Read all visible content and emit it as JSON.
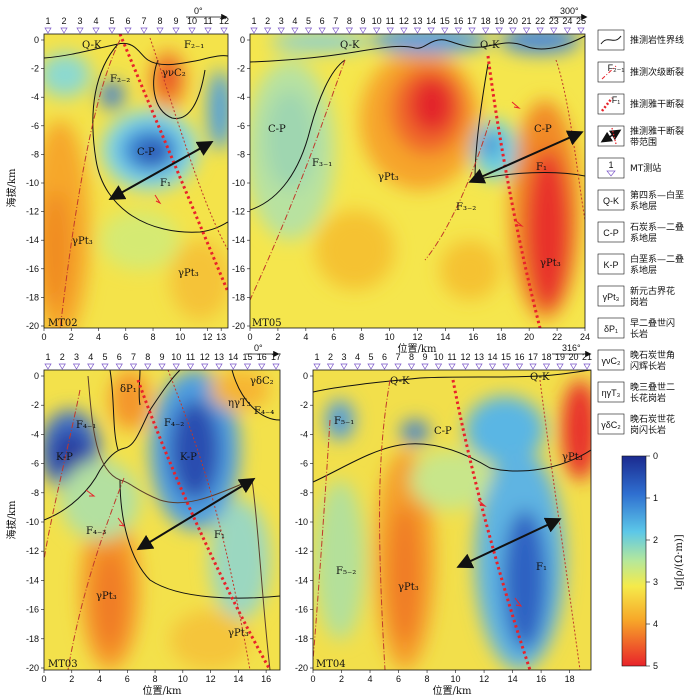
{
  "panels": [
    {
      "id": "MT02",
      "name": "MT02",
      "stations": [
        "1",
        "2",
        "3",
        "4",
        "5",
        "6",
        "7",
        "8",
        "9",
        "10",
        "11",
        "12"
      ],
      "azimuth": "0°",
      "x_ticks": [
        "0",
        "2",
        "4",
        "6",
        "8",
        "10",
        "12",
        "13"
      ],
      "y_ticks": [
        "0",
        "-2",
        "-4",
        "-6",
        "-8",
        "-10",
        "-12",
        "-14",
        "-16",
        "-18",
        "-20"
      ],
      "y_label": "海拔/km",
      "x_label": "",
      "labels": [
        "Q-K",
        "F₂₋₁",
        "F₂₋₂",
        "γνC₂",
        "C-P",
        "F₁",
        "γPt₃",
        "γPt₃"
      ]
    },
    {
      "id": "MT05",
      "name": "MT05",
      "stations": [
        "1",
        "2",
        "3",
        "4",
        "5",
        "6",
        "7",
        "8",
        "9",
        "10",
        "11",
        "12",
        "13",
        "14",
        "15",
        "16",
        "17",
        "18",
        "19",
        "20",
        "21",
        "22",
        "23",
        "24",
        "25"
      ],
      "azimuth": "300°",
      "x_ticks": [
        "0",
        "2",
        "4",
        "6",
        "8",
        "10",
        "12",
        "14",
        "16",
        "18",
        "20",
        "22",
        "24"
      ],
      "y_ticks": [
        "0",
        "-2",
        "-4",
        "-6",
        "-8",
        "-10",
        "-12",
        "-14",
        "-16",
        "-18",
        "-20"
      ],
      "y_label": "",
      "x_label": "位置/km",
      "labels": [
        "Q-K",
        "Q-K",
        "C-P",
        "C-P",
        "F₃₋₁",
        "γPt₃",
        "F₃₋₂",
        "F₁",
        "γPt₃"
      ]
    },
    {
      "id": "MT03",
      "name": "MT03",
      "stations": [
        "1",
        "2",
        "3",
        "4",
        "5",
        "6",
        "7",
        "8",
        "9",
        "10",
        "11",
        "12",
        "13",
        "14",
        "15",
        "16",
        "17"
      ],
      "azimuth": "0°",
      "x_ticks": [
        "0",
        "2",
        "4",
        "6",
        "8",
        "10",
        "12",
        "14",
        "16"
      ],
      "y_ticks": [
        "0",
        "-2",
        "-4",
        "-6",
        "-8",
        "-10",
        "-12",
        "-14",
        "-16",
        "-18",
        "-20"
      ],
      "y_label": "海拔/km",
      "x_label": "位置/km",
      "labels": [
        "δP₁",
        "γδC₂",
        "ηγT₃",
        "F₄₋₁",
        "F₄₋₂",
        "F₄₋₄",
        "K-P",
        "K-P",
        "F₄₋₃",
        "F₁",
        "γPt₃",
        "γPt₃"
      ]
    },
    {
      "id": "MT04",
      "name": "MT04",
      "stations": [
        "1",
        "2",
        "3",
        "4",
        "5",
        "6",
        "7",
        "8",
        "9",
        "10",
        "11",
        "12",
        "13",
        "14",
        "15",
        "16",
        "17",
        "18",
        "19",
        "20",
        "21"
      ],
      "azimuth": "316°",
      "x_ticks": [
        "0",
        "2",
        "4",
        "6",
        "8",
        "10",
        "12",
        "14",
        "16",
        "18"
      ],
      "y_ticks": [
        "0",
        "-2",
        "-4",
        "-6",
        "-8",
        "-10",
        "-12",
        "-14",
        "-16",
        "-18",
        "-20"
      ],
      "y_label": "",
      "x_label": "位置/km",
      "labels": [
        "Q-K",
        "Q-K",
        "F₅₋₁",
        "C-P",
        "γPt₃",
        "F₅₋₂",
        "γPt₃",
        "F₁"
      ]
    }
  ],
  "legend": [
    {
      "symbol": "solid-line",
      "text1": "推测岩性界线",
      "text2": ""
    },
    {
      "symbol": "dashdot-line",
      "symlabel": "F₂₋₁",
      "text1": "推测次级断裂",
      "text2": ""
    },
    {
      "symbol": "dotted-line",
      "symlabel": "F₁",
      "text1": "推测雅干断裂",
      "text2": ""
    },
    {
      "symbol": "double-arrow",
      "text1": "推测雅干断裂",
      "text2": "带范围"
    },
    {
      "symbol": "station",
      "symlabel": "1",
      "text1": "MT测站",
      "text2": ""
    },
    {
      "symbol": "box",
      "symlabel": "Q-K",
      "text1": "第四系—白垩",
      "text2": "系地层"
    },
    {
      "symbol": "box",
      "symlabel": "C-P",
      "text1": "石炭系—二叠",
      "text2": "系地层"
    },
    {
      "symbol": "box",
      "symlabel": "K-P",
      "text1": "白垩系—二叠",
      "text2": "系地层"
    },
    {
      "symbol": "box",
      "symlabel": "γPt₃",
      "text1": "新元古界花",
      "text2": "岗岩"
    },
    {
      "symbol": "box",
      "symlabel": "δP₁",
      "text1": "早二叠世闪",
      "text2": "长岩"
    },
    {
      "symbol": "box",
      "symlabel": "γνC₂",
      "text1": "晚石炭世角",
      "text2": "闪辉长岩"
    },
    {
      "symbol": "box",
      "symlabel": "ηγT₃",
      "text1": "晚三叠世二",
      "text2": "长花岗岩"
    },
    {
      "symbol": "box",
      "symlabel": "γδC₂",
      "text1": "晚石炭世花",
      "text2": "岗闪长岩"
    }
  ],
  "colorbar": {
    "title": "lg[ρ/(Ω·m)]",
    "ticks": [
      "0",
      "1",
      "2",
      "3",
      "4",
      "5"
    ]
  },
  "colors": {
    "low": "#2a3ea8",
    "mid": "#f2e44a",
    "high": "#e8232a",
    "fault": "#e8232a"
  }
}
